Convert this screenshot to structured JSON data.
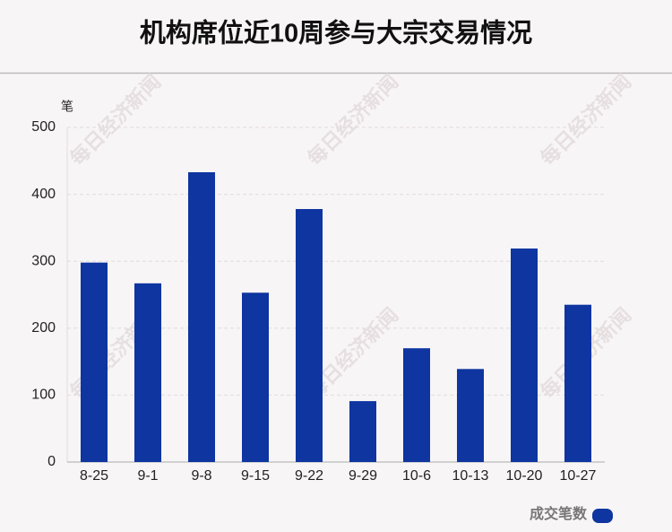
{
  "chart_data": {
    "type": "bar",
    "title": "机构席位近10周参与大宗交易情况",
    "y_label": "笔",
    "watermark": "每日经济新闻",
    "categories": [
      "8-25",
      "9-1",
      "9-8",
      "9-15",
      "9-22",
      "9-29",
      "10-6",
      "10-13",
      "10-20",
      "10-27"
    ],
    "series": [
      {
        "name": "成交笔数",
        "color": "#0e35a0",
        "values": [
          298,
          267,
          433,
          253,
          378,
          91,
          170,
          139,
          319,
          235
        ]
      }
    ],
    "ylim": [
      0,
      500
    ],
    "yticks": [
      0,
      100,
      200,
      300,
      400,
      500
    ],
    "grid": true,
    "legend": "bottom-right"
  }
}
